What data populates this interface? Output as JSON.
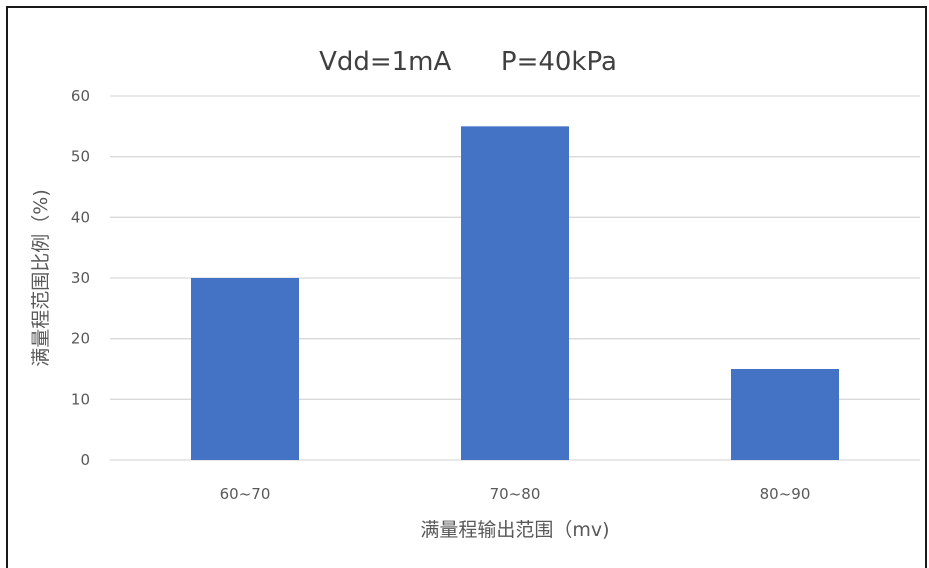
{
  "chart_data": {
    "type": "bar",
    "title": "Vdd=1mA      P=40kPa",
    "categories": [
      "60~70",
      "70~80",
      "80~90"
    ],
    "values": [
      30,
      55,
      15
    ],
    "xlabel": "满量程输出范围（mv)",
    "ylabel": "满量程范围比例（%)",
    "ylim": [
      0,
      60
    ],
    "yticks": [
      0,
      10,
      20,
      30,
      40,
      50,
      60
    ],
    "grid": true,
    "legend": "none",
    "bar_color": "#4472C4",
    "grid_color": "#D9D9D9"
  }
}
